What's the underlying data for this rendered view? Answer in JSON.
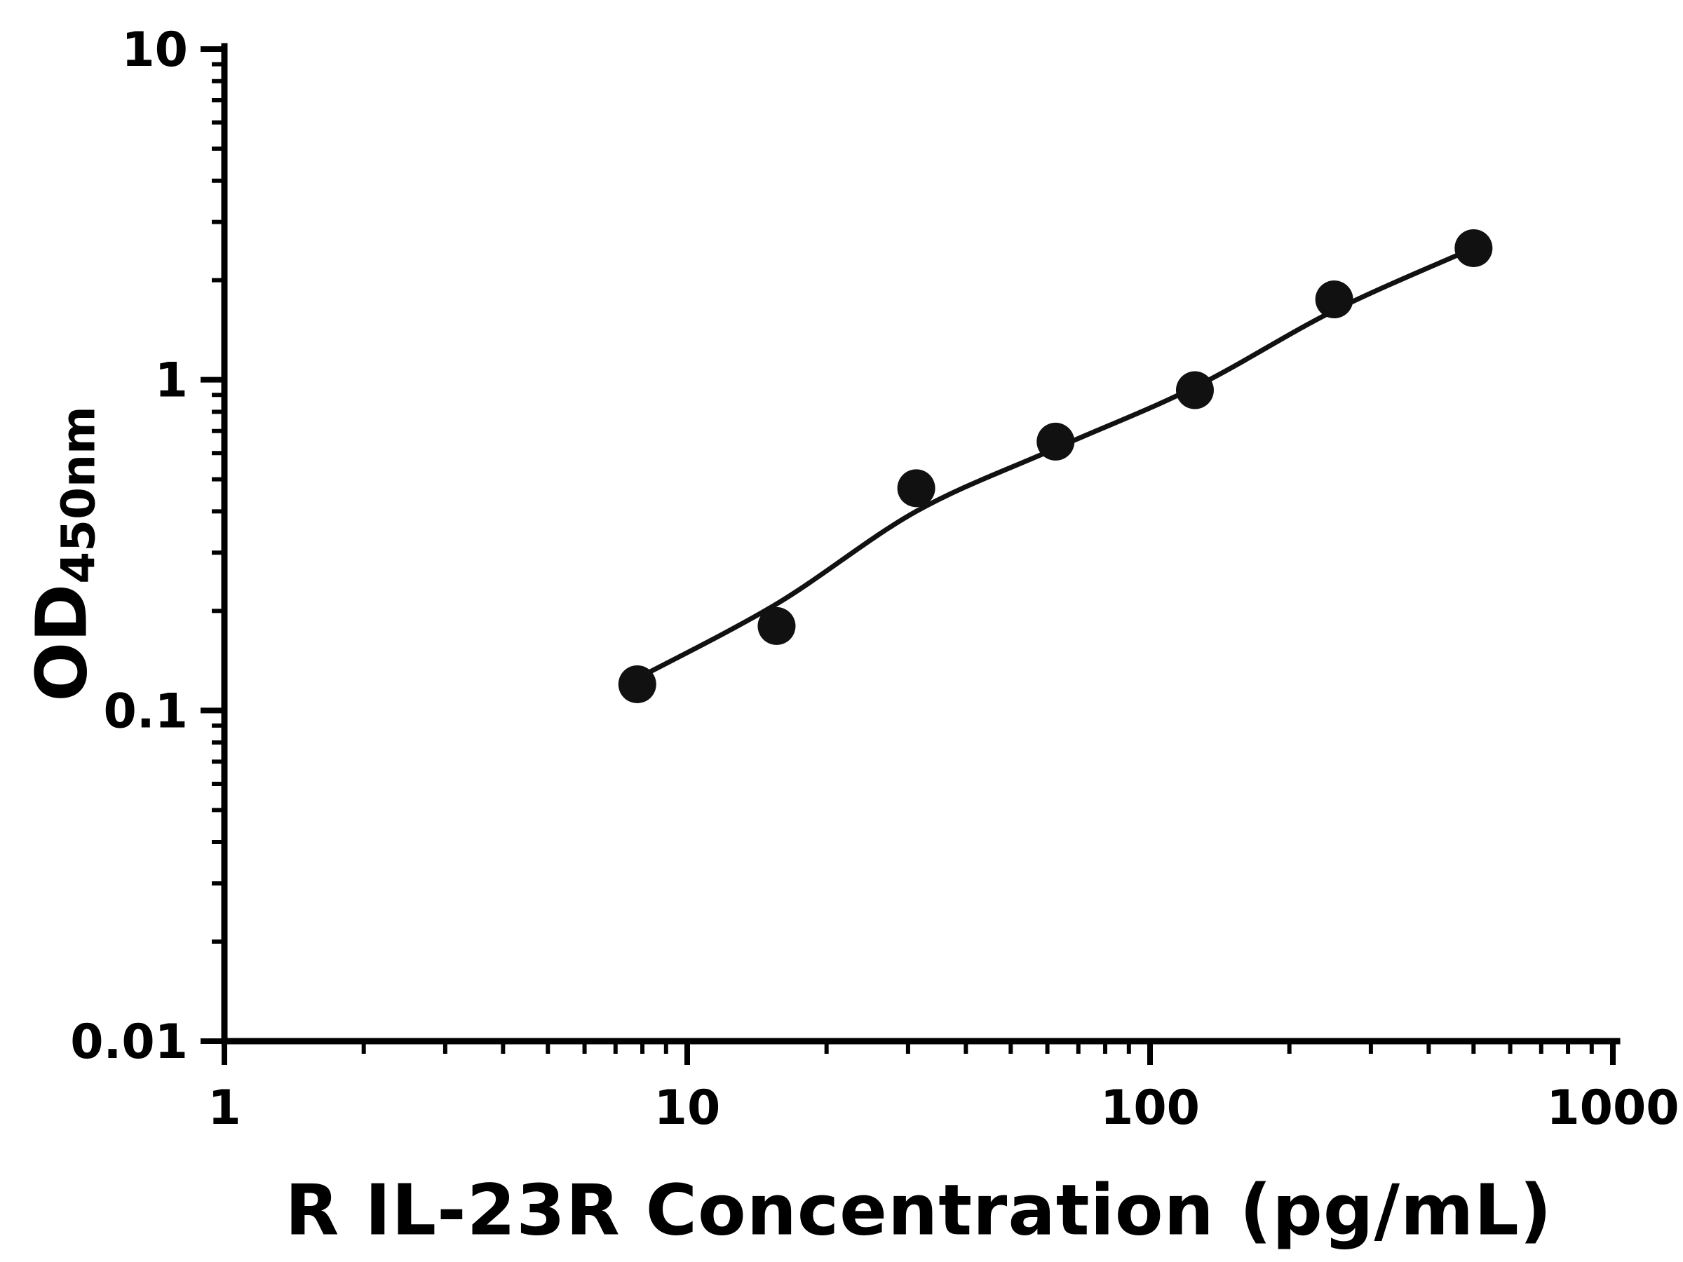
{
  "chart": {
    "x_title": "R IL-23R Concentration (pg/mL)",
    "y_title_main": "OD",
    "y_title_sub": "450nm"
  },
  "chart_data": {
    "type": "scatter",
    "title": "",
    "xlabel": "R IL-23R Concentration (pg/mL)",
    "ylabel": "OD450nm",
    "x_scale": "log",
    "y_scale": "log",
    "xlim": [
      1,
      1000
    ],
    "ylim": [
      0.01,
      10
    ],
    "x_ticks": [
      1,
      10,
      100,
      1000
    ],
    "x_tick_labels": [
      "1",
      "10",
      "100",
      "1000"
    ],
    "y_ticks": [
      0.01,
      0.1,
      1,
      10
    ],
    "y_tick_labels": [
      "0.01",
      "0.1",
      "1",
      "10"
    ],
    "grid": false,
    "legend": false,
    "marker_color": "#111111",
    "line_color": "#111111",
    "series": [
      {
        "name": "standard-points",
        "x": [
          7.8,
          15.6,
          31.25,
          62.5,
          125,
          250,
          500
        ],
        "y": [
          0.12,
          0.18,
          0.47,
          0.65,
          0.93,
          1.75,
          2.5
        ]
      }
    ],
    "fit_curve": {
      "name": "fitted-standard-curve",
      "x": [
        7.8,
        15.6,
        31.25,
        62.5,
        125,
        250,
        500
      ],
      "y": [
        0.125,
        0.21,
        0.4,
        0.62,
        0.95,
        1.62,
        2.5
      ]
    }
  }
}
